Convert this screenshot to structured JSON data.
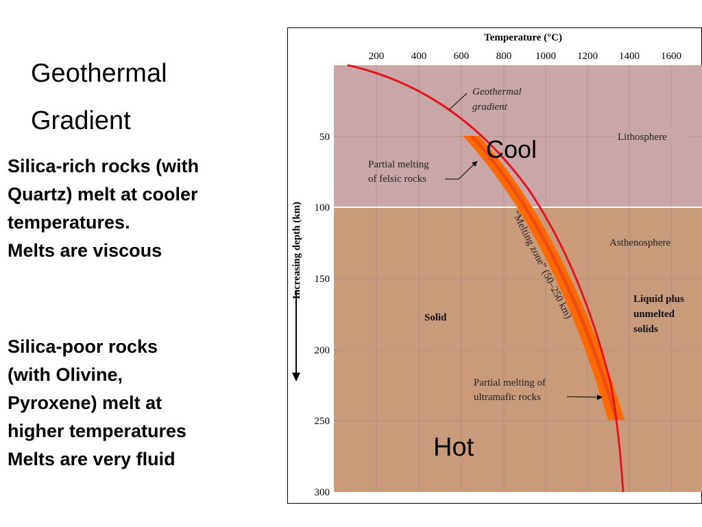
{
  "slide": {
    "title_lines": [
      "Geothermal",
      "Gradient"
    ],
    "paragraph1": [
      "Silica-rich rocks (with",
      "Quartz) melt at cooler",
      "temperatures.",
      "Melts are viscous"
    ],
    "paragraph2": [
      "Silica-poor rocks",
      "(with Olivine,",
      "Pyroxene) melt at",
      "higher temperatures",
      "Melts are very fluid"
    ]
  },
  "diagram": {
    "axis_title_top": "Temperature (°C)",
    "temperature_ticks": [
      "200",
      "400",
      "600",
      "800",
      "1000",
      "1200",
      "1400",
      "1600"
    ],
    "axis_title_left": "Increasing depth (km)",
    "depth_ticks": [
      "50",
      "100",
      "150",
      "200",
      "250",
      "300"
    ],
    "labels": {
      "geothermal_gradient": [
        "Geothermal",
        "gradient"
      ],
      "lithosphere": "Lithosphere",
      "asthenosphere": "Asthenosphere",
      "partial_felsic": [
        "Partial melting",
        "of felsic rocks"
      ],
      "melting_zone": "“Melting zone” (50–250 km)",
      "solid": "Solid",
      "liquid": [
        "Liquid plus",
        "unmelted",
        "solids"
      ],
      "partial_ultramafic": [
        "Partial melting of",
        "ultramafic rocks"
      ],
      "cool": "Cool",
      "hot": "Hot"
    },
    "colors": {
      "lithosphere": "#c9a7a9",
      "asthenosphere": "#c99b7b",
      "melting_zone": "#ff6a00",
      "gradient_line": "#e8121c"
    }
  }
}
